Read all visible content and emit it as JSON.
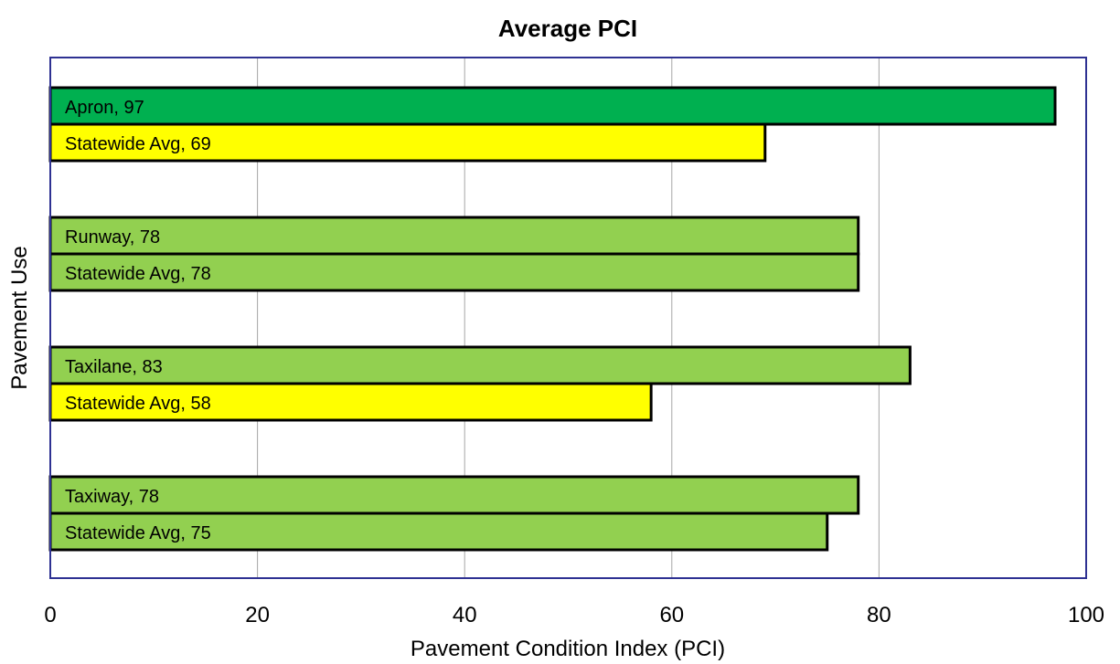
{
  "chart_data": {
    "type": "bar",
    "orientation": "horizontal",
    "title": "Average PCI",
    "xlabel": "Pavement Condition Index (PCI)",
    "ylabel": "Pavement Use",
    "xlim": [
      0,
      100
    ],
    "x_ticks": [
      "0",
      "20",
      "40",
      "60",
      "80",
      "100"
    ],
    "grid": "vertical",
    "bars": [
      {
        "label": "Apron, 97",
        "category": "Apron",
        "value": 97,
        "color": "#00b050"
      },
      {
        "label": "Statewide Avg, 69",
        "category": "Statewide Avg",
        "value": 69,
        "color": "#ffff00"
      },
      {
        "label": "Runway, 78",
        "category": "Runway",
        "value": 78,
        "color": "#92d050"
      },
      {
        "label": "Statewide Avg, 78",
        "category": "Statewide Avg",
        "value": 78,
        "color": "#92d050"
      },
      {
        "label": "Taxilane, 83",
        "category": "Taxilane",
        "value": 83,
        "color": "#92d050"
      },
      {
        "label": "Statewide Avg, 58",
        "category": "Statewide Avg",
        "value": 58,
        "color": "#ffff00"
      },
      {
        "label": "Taxiway, 78",
        "category": "Taxiway",
        "value": 78,
        "color": "#92d050"
      },
      {
        "label": "Statewide Avg, 75",
        "category": "Statewide Avg",
        "value": 75,
        "color": "#92d050"
      }
    ],
    "colors": {
      "plot_border": "#2e3192",
      "grid": "#a6a6a6",
      "bar_outline": "#000000"
    }
  }
}
